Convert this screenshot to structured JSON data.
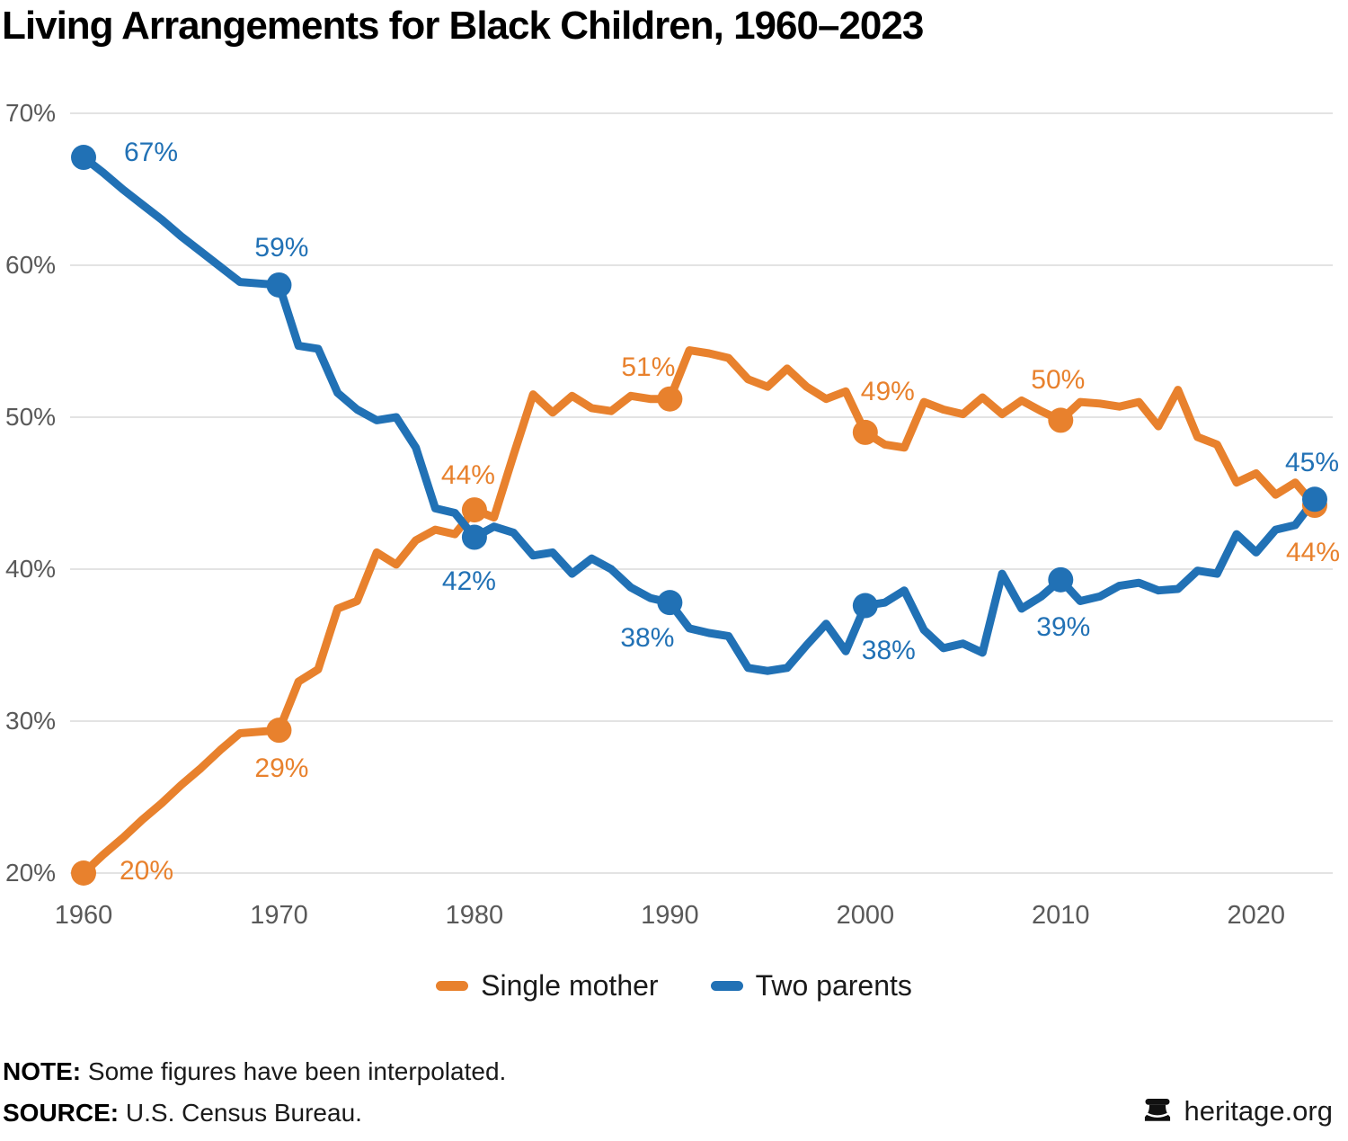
{
  "title": "Living Arrangements for Black Children, 1960–2023",
  "chart_data": {
    "type": "line",
    "title": "Living Arrangements for Black Children, 1960–2023",
    "x": [
      1960,
      1961,
      1962,
      1963,
      1964,
      1965,
      1966,
      1967,
      1968,
      1969,
      1970,
      1971,
      1972,
      1973,
      1974,
      1975,
      1976,
      1977,
      1978,
      1979,
      1980,
      1981,
      1982,
      1983,
      1984,
      1985,
      1986,
      1987,
      1988,
      1989,
      1990,
      1991,
      1992,
      1993,
      1994,
      1995,
      1996,
      1997,
      1998,
      1999,
      2000,
      2001,
      2002,
      2003,
      2004,
      2005,
      2006,
      2007,
      2008,
      2009,
      2010,
      2011,
      2012,
      2013,
      2014,
      2015,
      2016,
      2017,
      2018,
      2019,
      2020,
      2021,
      2022,
      2023
    ],
    "series": [
      {
        "name": "Single mother",
        "color": "#E8812D",
        "values": [
          20.0,
          21.2,
          22.3,
          23.5,
          24.6,
          25.8,
          26.9,
          28.1,
          29.2,
          29.3,
          29.4,
          32.6,
          33.4,
          37.4,
          37.9,
          41.1,
          40.3,
          41.9,
          42.6,
          42.3,
          43.9,
          43.4,
          47.5,
          51.5,
          50.3,
          51.4,
          50.6,
          50.4,
          51.4,
          51.2,
          51.2,
          54.4,
          54.2,
          53.9,
          52.5,
          52.0,
          53.2,
          52.0,
          51.2,
          51.7,
          49.0,
          48.2,
          48.0,
          51.0,
          50.5,
          50.2,
          51.3,
          50.2,
          51.1,
          50.4,
          49.8,
          51.0,
          50.9,
          50.7,
          51.0,
          49.4,
          51.8,
          48.7,
          48.2,
          45.7,
          46.3,
          44.9,
          45.7,
          44.2
        ]
      },
      {
        "name": "Two parents",
        "color": "#2171B5",
        "values": [
          67.1,
          66.1,
          65.0,
          64.0,
          63.0,
          61.9,
          60.9,
          59.9,
          58.9,
          58.8,
          58.7,
          54.7,
          54.5,
          51.6,
          50.5,
          49.8,
          50.0,
          48.0,
          44.0,
          43.7,
          42.1,
          42.8,
          42.4,
          40.9,
          41.1,
          39.7,
          40.7,
          40.0,
          38.8,
          38.1,
          37.8,
          36.1,
          35.8,
          35.6,
          33.5,
          33.3,
          33.5,
          35.0,
          36.4,
          34.6,
          37.6,
          37.8,
          38.6,
          36.0,
          34.8,
          35.1,
          34.5,
          39.7,
          37.4,
          38.2,
          39.3,
          37.9,
          38.2,
          38.9,
          39.1,
          38.6,
          38.7,
          39.9,
          39.7,
          42.3,
          41.1,
          42.6,
          42.9,
          44.6
        ]
      }
    ],
    "ylim": [
      20,
      70
    ],
    "grid": "horizontal",
    "legend_position": "bottom",
    "marker_years": [
      1960,
      1970,
      1980,
      1990,
      2000,
      2010,
      2023
    ],
    "y_ticks": [
      {
        "value": 70,
        "label": "70%"
      },
      {
        "value": 60,
        "label": "60%"
      },
      {
        "value": 50,
        "label": "50%"
      },
      {
        "value": 40,
        "label": "40%"
      },
      {
        "value": 30,
        "label": "30%"
      },
      {
        "value": 20,
        "label": "20%"
      }
    ],
    "x_ticks": [
      {
        "value": 1960,
        "label": "1960"
      },
      {
        "value": 1970,
        "label": "1970"
      },
      {
        "value": 1980,
        "label": "1980"
      },
      {
        "value": 1990,
        "label": "1990"
      },
      {
        "value": 2000,
        "label": "2000"
      },
      {
        "value": 2010,
        "label": "2010"
      },
      {
        "value": 2020,
        "label": "2020"
      }
    ],
    "annotations": [
      {
        "series_index": 1,
        "year": 1960,
        "text": "67%"
      },
      {
        "series_index": 1,
        "year": 1970,
        "text": "59%"
      },
      {
        "series_index": 1,
        "year": 1980,
        "text": "42%"
      },
      {
        "series_index": 1,
        "year": 1990,
        "text": "38%"
      },
      {
        "series_index": 1,
        "year": 2000,
        "text": "38%"
      },
      {
        "series_index": 1,
        "year": 2010,
        "text": "39%"
      },
      {
        "series_index": 1,
        "year": 2023,
        "text": "45%"
      },
      {
        "series_index": 0,
        "year": 1960,
        "text": "20%"
      },
      {
        "series_index": 0,
        "year": 1970,
        "text": "29%"
      },
      {
        "series_index": 0,
        "year": 1980,
        "text": "44%"
      },
      {
        "series_index": 0,
        "year": 1990,
        "text": "51%"
      },
      {
        "series_index": 0,
        "year": 2000,
        "text": "49%"
      },
      {
        "series_index": 0,
        "year": 2010,
        "text": "50%"
      },
      {
        "series_index": 0,
        "year": 2023,
        "text": "44%"
      }
    ],
    "colors": {
      "grid": "#E3E3E3",
      "tick_text": "#595959"
    }
  },
  "footer": {
    "note_label": "NOTE:",
    "note_text": " Some figures have been interpolated.",
    "source_label": "SOURCE:",
    "source_text": " U.S. Census Bureau.",
    "brand": "heritage.org"
  }
}
